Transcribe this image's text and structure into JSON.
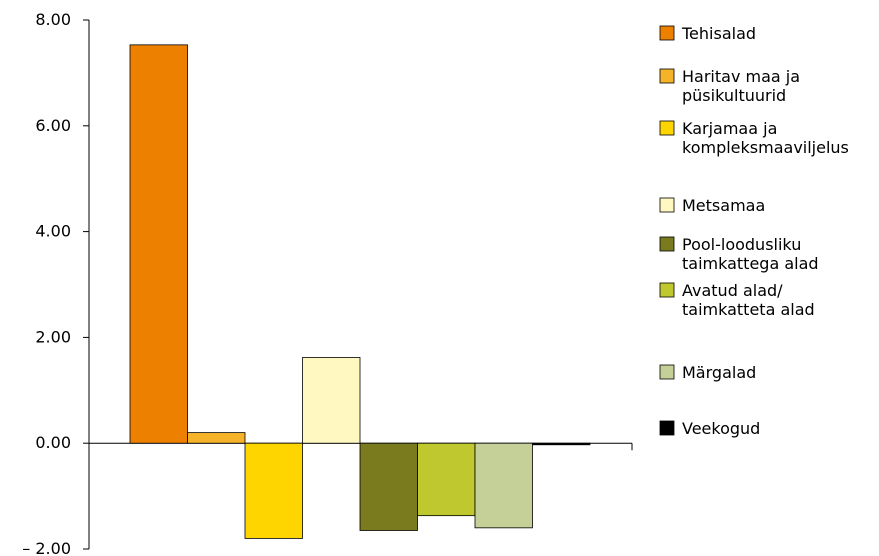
{
  "chart_data": {
    "type": "bar",
    "title": "",
    "xlabel": "",
    "ylabel": "",
    "ylim": [
      -2,
      8
    ],
    "yticks": [
      8,
      6,
      4,
      2,
      0,
      -2
    ],
    "ytick_labels": [
      "8.00",
      "6.00",
      "4.00",
      "2.00",
      "0.00",
      "– 2.00"
    ],
    "grid": false,
    "legend_placement": "right",
    "categories": [
      "Tehisalad",
      "Haritav maa ja püsikultuurid",
      "Karjamaa ja kompleksmaaviljelus",
      "Metsamaa",
      "Pool-loodusliku taimkattega alad",
      "Avatud alad/ taimkatteta alad",
      "Märgalad",
      "Veekogud"
    ],
    "values": [
      7.53,
      0.2,
      -1.8,
      1.62,
      -1.65,
      -1.37,
      -1.6,
      -0.03
    ],
    "colors": [
      "#ee8000",
      "#f5b32a",
      "#ffd500",
      "#fff8c0",
      "#7a7a1e",
      "#c0c830",
      "#c5d098",
      "#000000"
    ],
    "legend": [
      {
        "lines": [
          "Tehisalad"
        ]
      },
      {
        "lines": [
          "Haritav maa ja",
          "püsikultuurid"
        ]
      },
      {
        "lines": [
          "Karjamaa ja",
          "kompleksmaaviljelus"
        ]
      },
      {
        "lines": [
          "Metsamaa"
        ]
      },
      {
        "lines": [
          "Pool-loodusliku",
          "taimkattega alad"
        ]
      },
      {
        "lines": [
          "Avatud alad/",
          "taimkatteta alad"
        ]
      },
      {
        "lines": [
          "Märgalad"
        ]
      },
      {
        "lines": [
          "Veekogud"
        ]
      }
    ]
  }
}
